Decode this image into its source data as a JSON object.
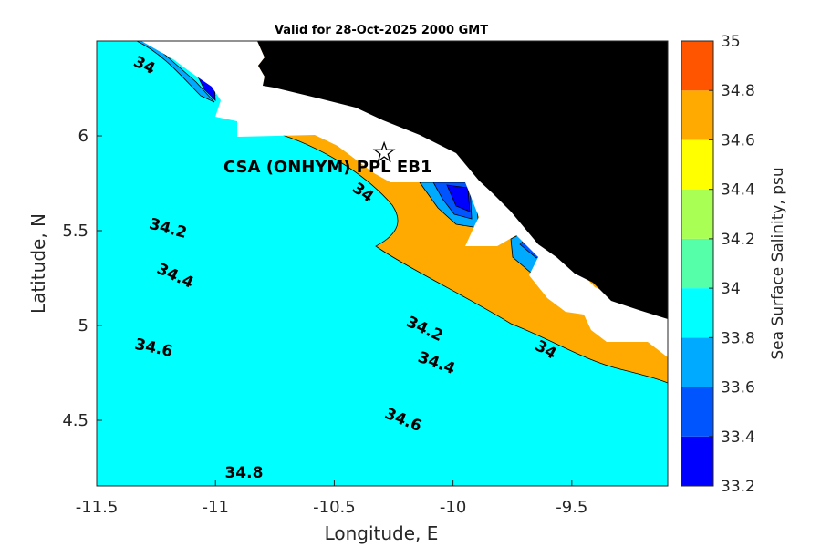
{
  "chart_data": {
    "type": "contour",
    "title": "Valid for 28-Oct-2025 2000 GMT",
    "xlabel": "Longitude, E",
    "ylabel": "Latitude, N",
    "xlim": [
      -11.52,
      -9.1
    ],
    "ylim": [
      4.16,
      6.5
    ],
    "x_ticks": [
      "-11.5",
      "-11",
      "-10.5",
      "-10",
      "-9.5"
    ],
    "y_ticks": [
      "4.5",
      "5",
      "5.5",
      "6"
    ],
    "colorbar": {
      "label": "Sea Surface Salinity, psu",
      "levels": [
        33.2,
        33.4,
        33.6,
        33.8,
        34.0,
        34.2,
        34.4,
        34.6,
        34.8,
        35.0
      ],
      "tick_labels": [
        "33.2",
        "33.4",
        "33.6",
        "33.8",
        "34",
        "34.2",
        "34.4",
        "34.6",
        "34.8",
        "35"
      ],
      "colors": [
        "#0000ff",
        "#0055ff",
        "#00aaff",
        "#00ffff",
        "#55ffaa",
        "#aaff55",
        "#ffff00",
        "#ffaa00",
        "#ff5500"
      ]
    },
    "contour_labels": [
      {
        "text": "34",
        "x": -11.3,
        "y": 6.37
      },
      {
        "text": "34",
        "x": -10.38,
        "y": 5.7
      },
      {
        "text": "34",
        "x": -9.61,
        "y": 4.87
      },
      {
        "text": "34.2",
        "x": -11.2,
        "y": 5.51
      },
      {
        "text": "34.2",
        "x": -10.12,
        "y": 4.98
      },
      {
        "text": "34.4",
        "x": -11.17,
        "y": 5.26
      },
      {
        "text": "34.4",
        "x": -10.07,
        "y": 4.8
      },
      {
        "text": "34.6",
        "x": -11.26,
        "y": 4.88
      },
      {
        "text": "34.6",
        "x": -10.21,
        "y": 4.5
      },
      {
        "text": "34.8",
        "x": -10.88,
        "y": 4.22
      }
    ],
    "annotations": [
      {
        "text": "CSA (ONHYM) PPL EB1",
        "marker": "star",
        "x": -10.29,
        "y": 5.91
      }
    ],
    "colors": {
      "land": "#000000",
      "no_data": "#ffffff"
    }
  }
}
